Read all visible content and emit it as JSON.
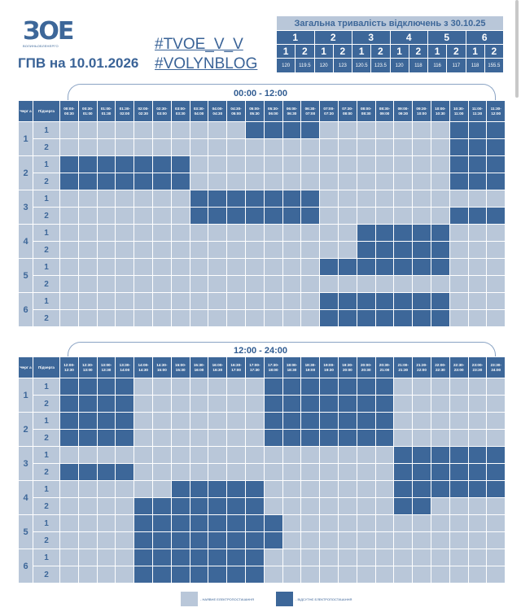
{
  "header": {
    "logo_text": "ВОЛИНЬОБЛЕНЕРГО",
    "date_title": "ГПВ на 10.01.2026",
    "hashtags": [
      "#TVOE_V_V",
      "#VOLYNBLOG"
    ]
  },
  "summary": {
    "title": "Загальна тривалість відключень з 30.10.25",
    "groups": [
      "1",
      "2",
      "3",
      "4",
      "5",
      "6"
    ],
    "subgroups": [
      "1",
      "2",
      "1",
      "2",
      "1",
      "2",
      "1",
      "2",
      "1",
      "2",
      "1",
      "2"
    ],
    "values": [
      "120",
      "119.5",
      "120",
      "123",
      "120.5",
      "123.5",
      "120",
      "118",
      "116",
      "117",
      "118",
      "155.5"
    ]
  },
  "colors": {
    "on": "#b9c7d9",
    "off": "#3d6799"
  },
  "table_headers": {
    "queue": "Черг а",
    "subqueue": "Підчерга"
  },
  "schedules": [
    {
      "title": "00:00 - 12:00",
      "slots": [
        "00:00- 00:30",
        "00:30- 01:00",
        "01:00- 01:30",
        "01:30- 02:00",
        "02:00- 02:30",
        "02:30- 03:00",
        "03:00- 03:30",
        "03:30- 04:00",
        "04:00- 04:30",
        "04:30- 05:00",
        "05:00- 05:30",
        "05:30- 06:00",
        "06:00- 06:30",
        "06:30- 07:00",
        "07:00- 07:30",
        "07:30- 08:00",
        "08:00- 08:30",
        "08:30- 09:00",
        "09:00- 09:30",
        "09:30- 10:00",
        "10:00- 10:30",
        "10:30- 11:00",
        "11:00- 11:30",
        "11:30- 12:00"
      ],
      "rows": [
        {
          "queue": "1",
          "sub": "1",
          "off": [
            10,
            11,
            12,
            13,
            21,
            22,
            23
          ]
        },
        {
          "queue": "1",
          "sub": "2",
          "off": [
            21,
            22,
            23
          ]
        },
        {
          "queue": "2",
          "sub": "1",
          "off": [
            0,
            1,
            2,
            3,
            4,
            5,
            6,
            21,
            22,
            23
          ]
        },
        {
          "queue": "2",
          "sub": "2",
          "off": [
            0,
            1,
            2,
            3,
            4,
            5,
            6,
            21,
            22,
            23
          ]
        },
        {
          "queue": "3",
          "sub": "1",
          "off": [
            7,
            8,
            9,
            10,
            11,
            12,
            13
          ]
        },
        {
          "queue": "3",
          "sub": "2",
          "off": [
            7,
            8,
            9,
            10,
            11,
            12,
            13,
            21,
            22,
            23
          ]
        },
        {
          "queue": "4",
          "sub": "1",
          "off": [
            16,
            17,
            18,
            19,
            20
          ]
        },
        {
          "queue": "4",
          "sub": "2",
          "off": [
            16,
            17,
            18,
            19,
            20
          ]
        },
        {
          "queue": "5",
          "sub": "1",
          "off": [
            14,
            15,
            16,
            17,
            18,
            19,
            20
          ]
        },
        {
          "queue": "5",
          "sub": "2",
          "off": []
        },
        {
          "queue": "6",
          "sub": "1",
          "off": [
            14,
            15,
            16,
            17,
            18,
            19,
            20
          ]
        },
        {
          "queue": "6",
          "sub": "2",
          "off": [
            14,
            15,
            16,
            17,
            18,
            19,
            20
          ]
        }
      ]
    },
    {
      "title": "12:00 - 24:00",
      "slots": [
        "12:00- 12:30",
        "12:30- 13:00",
        "13:00- 13:30",
        "13:30- 14:00",
        "14:00- 14:30",
        "14:30- 15:00",
        "15:00- 15:30",
        "15:30- 16:00",
        "16:00- 16:30",
        "16:30- 17:00",
        "17:00- 17:30",
        "17:30- 18:00",
        "18:00- 18:30",
        "18:30- 19:00",
        "19:00- 19:30",
        "19:30- 20:00",
        "20:00- 20:30",
        "20:30- 21:00",
        "21:00- 21:30",
        "21:30- 22:00",
        "22:00- 22:30",
        "22:30- 23:00",
        "23:00- 23:30",
        "23:30- 24:00"
      ],
      "rows": [
        {
          "queue": "1",
          "sub": "1",
          "off": [
            0,
            1,
            2,
            3,
            11,
            12,
            13,
            14,
            15,
            16,
            17
          ]
        },
        {
          "queue": "1",
          "sub": "2",
          "off": [
            0,
            1,
            2,
            3,
            11,
            12,
            13,
            14,
            15,
            16,
            17
          ]
        },
        {
          "queue": "2",
          "sub": "1",
          "off": [
            0,
            1,
            2,
            3,
            11,
            12,
            13,
            14,
            15,
            16,
            17
          ]
        },
        {
          "queue": "2",
          "sub": "2",
          "off": [
            0,
            1,
            2,
            3,
            11,
            12,
            13,
            14,
            15,
            16,
            17
          ]
        },
        {
          "queue": "3",
          "sub": "1",
          "off": [
            18,
            19,
            20,
            21,
            22,
            23
          ]
        },
        {
          "queue": "3",
          "sub": "2",
          "off": [
            0,
            1,
            2,
            3,
            18,
            19,
            20,
            21,
            22,
            23
          ]
        },
        {
          "queue": "4",
          "sub": "1",
          "off": [
            6,
            7,
            8,
            9,
            10,
            18,
            19,
            20,
            21,
            22,
            23
          ]
        },
        {
          "queue": "4",
          "sub": "2",
          "off": [
            4,
            5,
            6,
            7,
            8,
            9,
            10,
            18,
            19
          ]
        },
        {
          "queue": "5",
          "sub": "1",
          "off": [
            4,
            5,
            6,
            7,
            8,
            9,
            10,
            11
          ]
        },
        {
          "queue": "5",
          "sub": "2",
          "off": [
            4,
            5,
            6,
            7,
            8,
            9,
            10,
            11
          ]
        },
        {
          "queue": "6",
          "sub": "1",
          "off": [
            4,
            5,
            6,
            7,
            8,
            9,
            10
          ]
        },
        {
          "queue": "6",
          "sub": "2",
          "off": [
            4,
            5,
            6,
            7,
            8,
            9,
            10
          ]
        }
      ]
    }
  ],
  "legend": {
    "on": "- НАЯВНЕ ЕЛЕКТРОПОСТАЧАННЯ",
    "off": "- ВІДСУТНЄ ЕЛЕКТРОПОСТАЧАННЯ"
  }
}
